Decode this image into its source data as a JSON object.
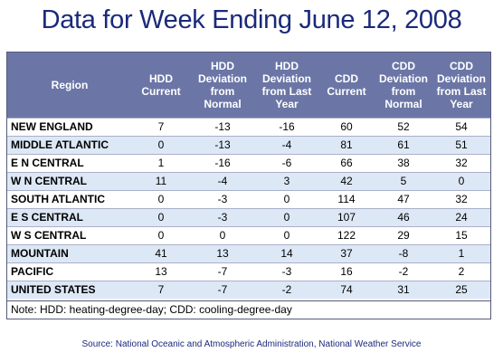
{
  "title": "Data for Week Ending June 12, 2008",
  "table": {
    "headers": {
      "region": "Region",
      "hdd_current": [
        "HDD",
        "Current"
      ],
      "hdd_dev_normal": [
        "HDD",
        "Deviation",
        "from",
        "Normal"
      ],
      "hdd_dev_last_year": [
        "HDD",
        "Deviation",
        "from Last",
        "Year"
      ],
      "cdd_current": [
        "CDD",
        "Current"
      ],
      "cdd_dev_normal": [
        "CDD",
        "Deviation",
        "from",
        "Normal"
      ],
      "cdd_dev_last_year": [
        "CDD",
        "Deviation",
        "from Last",
        "Year"
      ]
    },
    "rows": [
      {
        "region": "NEW ENGLAND",
        "hdd_current": "7",
        "hdd_dev_normal": "-13",
        "hdd_dev_last_year": "-16",
        "cdd_current": "60",
        "cdd_dev_normal": "52",
        "cdd_dev_last_year": "54"
      },
      {
        "region": "MIDDLE ATLANTIC",
        "hdd_current": "0",
        "hdd_dev_normal": "-13",
        "hdd_dev_last_year": "-4",
        "cdd_current": "81",
        "cdd_dev_normal": "61",
        "cdd_dev_last_year": "51"
      },
      {
        "region": "E N CENTRAL",
        "hdd_current": "1",
        "hdd_dev_normal": "-16",
        "hdd_dev_last_year": "-6",
        "cdd_current": "66",
        "cdd_dev_normal": "38",
        "cdd_dev_last_year": "32"
      },
      {
        "region": "W N CENTRAL",
        "hdd_current": "11",
        "hdd_dev_normal": "-4",
        "hdd_dev_last_year": "3",
        "cdd_current": "42",
        "cdd_dev_normal": "5",
        "cdd_dev_last_year": "0"
      },
      {
        "region": "SOUTH ATLANTIC",
        "hdd_current": "0",
        "hdd_dev_normal": "-3",
        "hdd_dev_last_year": "0",
        "cdd_current": "114",
        "cdd_dev_normal": "47",
        "cdd_dev_last_year": "32"
      },
      {
        "region": "E S CENTRAL",
        "hdd_current": "0",
        "hdd_dev_normal": "-3",
        "hdd_dev_last_year": "0",
        "cdd_current": "107",
        "cdd_dev_normal": "46",
        "cdd_dev_last_year": "24"
      },
      {
        "region": "W S CENTRAL",
        "hdd_current": "0",
        "hdd_dev_normal": "0",
        "hdd_dev_last_year": "0",
        "cdd_current": "122",
        "cdd_dev_normal": "29",
        "cdd_dev_last_year": "15"
      },
      {
        "region": "MOUNTAIN",
        "hdd_current": "41",
        "hdd_dev_normal": "13",
        "hdd_dev_last_year": "14",
        "cdd_current": "37",
        "cdd_dev_normal": "-8",
        "cdd_dev_last_year": "1"
      },
      {
        "region": "PACIFIC",
        "hdd_current": "13",
        "hdd_dev_normal": "-7",
        "hdd_dev_last_year": "-3",
        "cdd_current": "16",
        "cdd_dev_normal": "-2",
        "cdd_dev_last_year": "2"
      },
      {
        "region": "UNITED STATES",
        "hdd_current": "7",
        "hdd_dev_normal": "-7",
        "hdd_dev_last_year": "-2",
        "cdd_current": "74",
        "cdd_dev_normal": "31",
        "cdd_dev_last_year": "25"
      }
    ]
  },
  "note": "Note: HDD: heating-degree-day; CDD: cooling-degree-day",
  "source": "Source:  National Oceanic and Atmospheric Administration, National Weather Service",
  "colors": {
    "title": "#1a2a7a",
    "header_bg": "#6b76a6",
    "header_text": "#ffffff",
    "row_alt": "#dde8f6"
  }
}
